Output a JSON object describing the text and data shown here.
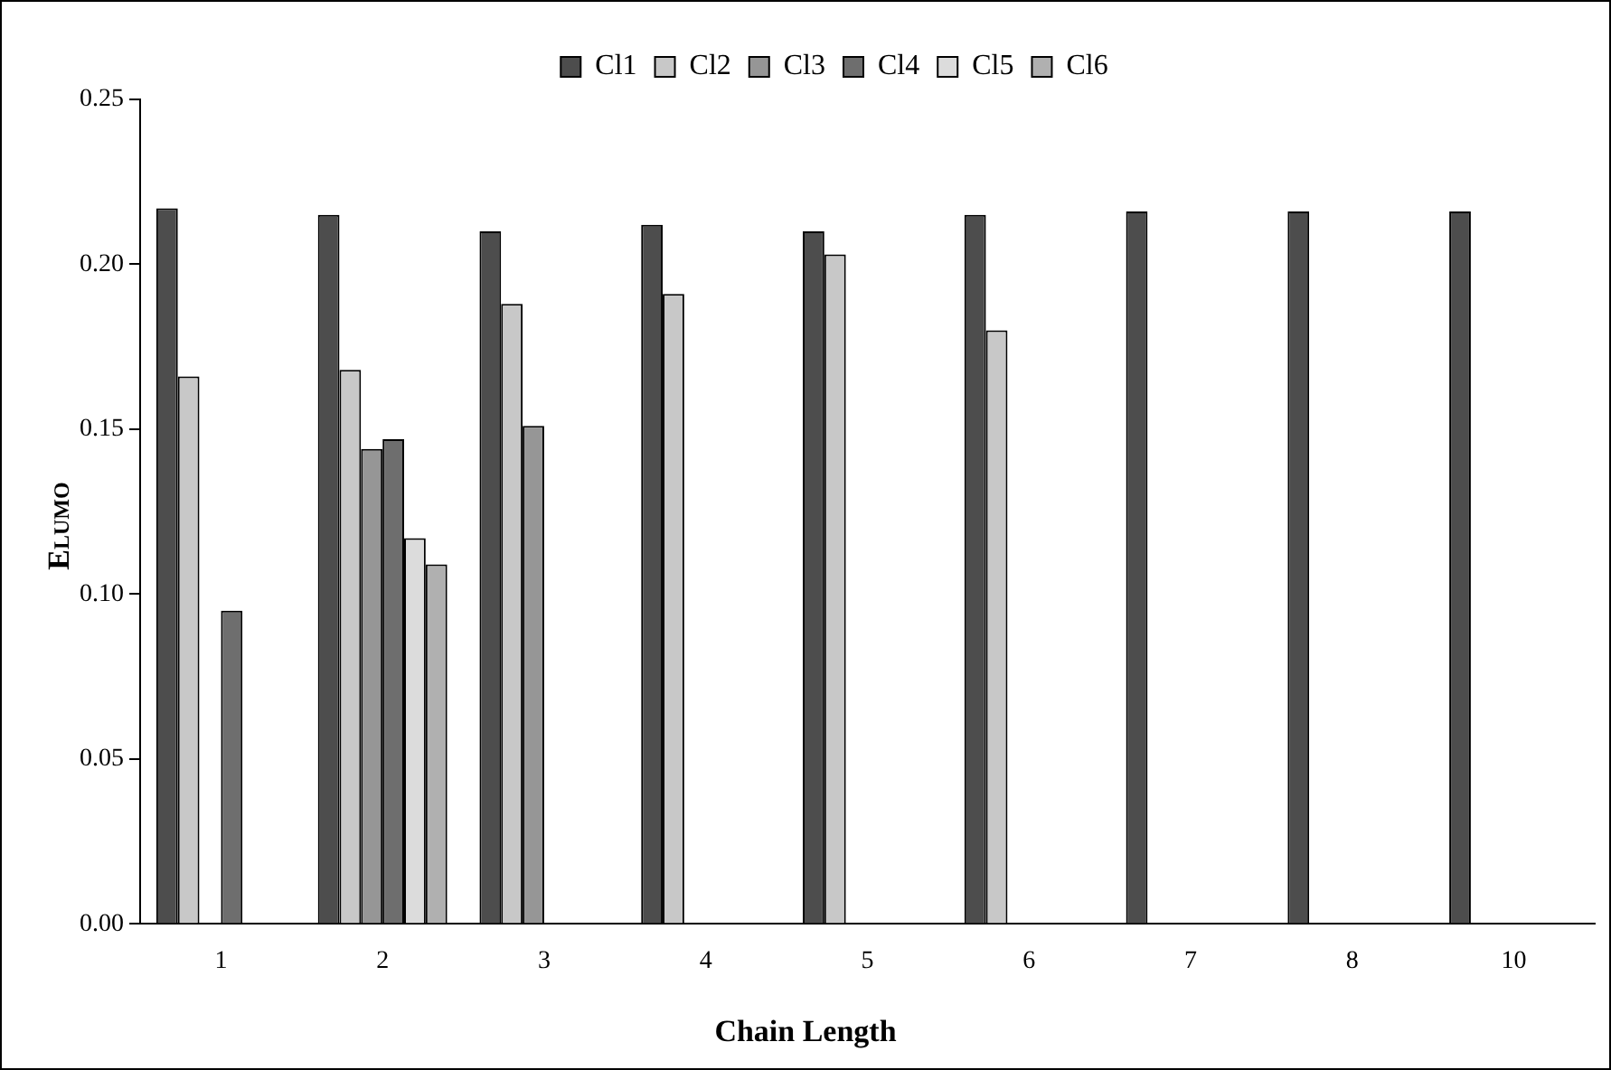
{
  "chart_data": {
    "type": "bar",
    "xlabel": "Chain Length",
    "ylabel": "E$_{LUMO}$",
    "categories": [
      "1",
      "2",
      "3",
      "4",
      "5",
      "6",
      "7",
      "8",
      "10"
    ],
    "series": [
      {
        "name": "Cl1",
        "color": "#4d4d4d",
        "values": [
          0.217,
          0.215,
          0.21,
          0.212,
          0.21,
          0.215,
          0.216,
          0.216,
          0.216
        ]
      },
      {
        "name": "Cl2",
        "color": "#c8c8c8",
        "values": [
          0.166,
          0.168,
          0.188,
          0.191,
          0.203,
          0.18,
          null,
          null,
          null
        ]
      },
      {
        "name": "Cl3",
        "color": "#969696",
        "values": [
          null,
          0.144,
          0.151,
          null,
          null,
          null,
          null,
          null,
          null
        ]
      },
      {
        "name": "Cl4",
        "color": "#6e6e6e",
        "values": [
          0.095,
          0.147,
          null,
          null,
          null,
          null,
          null,
          null,
          null
        ]
      },
      {
        "name": "Cl5",
        "color": "#dcdcdc",
        "values": [
          null,
          0.117,
          null,
          null,
          null,
          null,
          null,
          null,
          null
        ]
      },
      {
        "name": "Cl6",
        "color": "#b0b0b0",
        "values": [
          null,
          0.109,
          null,
          null,
          null,
          null,
          null,
          null,
          null
        ]
      }
    ],
    "ylim": [
      0,
      0.25
    ],
    "yticks": [
      {
        "value": 0,
        "label": "0.00"
      },
      {
        "value": 0.05,
        "label": "0.05"
      },
      {
        "value": 0.1,
        "label": "0.10"
      },
      {
        "value": 0.15,
        "label": "0.15"
      },
      {
        "value": 0.2,
        "label": "0.20"
      },
      {
        "value": 0.25,
        "label": "0.25"
      }
    ],
    "grid": false,
    "legend": "top"
  }
}
